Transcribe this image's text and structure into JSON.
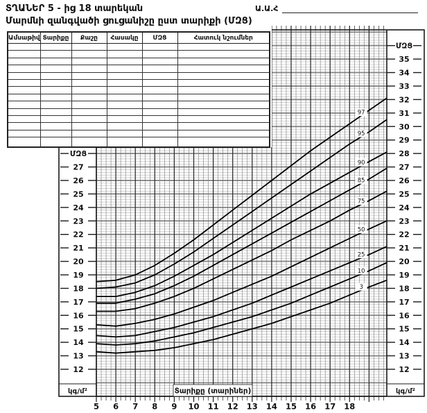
{
  "header": {
    "title_line1": "ՏՂԱՆԵՐ  5 - ից 18 տարեկան",
    "title_line2": "Մարմնի զանգվածի ցուցանիշը ըստ տարիքի (ՄԶՑ)",
    "name_label": "Ա.Ա.Հ"
  },
  "table": {
    "headers": [
      "Ամսաթիվ",
      "Տարիքը",
      "Քաշը",
      "Հասակը",
      "ՄԶՑ",
      "Հատուկ նշումներ"
    ],
    "empty_rows": 14
  },
  "chart_data": {
    "type": "line",
    "title": "Մարմնի զանգվածի ցուցանիշը ըստ տարիքի (ՄԶՑ)",
    "xlabel": "Տարիքը (տարիներ)",
    "ylabel": "ՄԶՑ",
    "y_unit": "կգ/մ²",
    "grid": true,
    "legend_position": "on-curve-right-end",
    "xlim": [
      5,
      19.9
    ],
    "ylim": [
      10,
      37.2
    ],
    "x_ticks": [
      5,
      6,
      7,
      8,
      9,
      10,
      11,
      12,
      13,
      14,
      15,
      16,
      17,
      18
    ],
    "y_ticks_left": [
      27,
      26,
      25,
      24,
      23,
      22,
      21,
      20,
      19,
      18,
      17,
      16,
      15,
      14,
      13,
      12
    ],
    "y_ticks_right": [
      35,
      34,
      33,
      32,
      31,
      30,
      29,
      28,
      27,
      26,
      25,
      24,
      23,
      22,
      21,
      20,
      19,
      18,
      17,
      16,
      15,
      14,
      13,
      12
    ],
    "x": [
      5,
      6,
      7,
      8,
      9,
      10,
      11,
      12,
      13,
      14,
      15,
      16,
      17,
      18,
      19,
      19.9
    ],
    "series": [
      {
        "name": "97",
        "values": [
          18.5,
          18.6,
          19.0,
          19.7,
          20.6,
          21.6,
          22.7,
          23.8,
          24.9,
          26.0,
          27.1,
          28.2,
          29.2,
          30.2,
          31.2,
          32.1
        ]
      },
      {
        "name": "95",
        "values": [
          18.0,
          18.1,
          18.4,
          19.0,
          19.8,
          20.7,
          21.7,
          22.7,
          23.7,
          24.7,
          25.7,
          26.7,
          27.7,
          28.7,
          29.6,
          30.5
        ]
      },
      {
        "name": "90",
        "values": [
          17.4,
          17.4,
          17.7,
          18.2,
          18.9,
          19.7,
          20.5,
          21.4,
          22.3,
          23.2,
          24.1,
          25.0,
          25.8,
          26.6,
          27.4,
          28.1
        ]
      },
      {
        "name": "85",
        "values": [
          16.9,
          16.9,
          17.2,
          17.6,
          18.2,
          18.9,
          19.7,
          20.5,
          21.3,
          22.1,
          22.9,
          23.7,
          24.5,
          25.3,
          26.1,
          26.9
        ]
      },
      {
        "name": "75",
        "values": [
          16.3,
          16.3,
          16.5,
          16.9,
          17.4,
          18.0,
          18.7,
          19.4,
          20.1,
          20.8,
          21.6,
          22.3,
          23.0,
          23.8,
          24.5,
          25.2
        ]
      },
      {
        "name": "50",
        "values": [
          15.3,
          15.2,
          15.4,
          15.7,
          16.1,
          16.6,
          17.1,
          17.7,
          18.3,
          18.9,
          19.6,
          20.3,
          21.0,
          21.7,
          22.4,
          23.0
        ]
      },
      {
        "name": "25",
        "values": [
          14.5,
          14.4,
          14.5,
          14.8,
          15.1,
          15.5,
          15.9,
          16.4,
          16.9,
          17.5,
          18.1,
          18.7,
          19.3,
          19.9,
          20.5,
          21.1
        ]
      },
      {
        "name": "10",
        "values": [
          13.9,
          13.8,
          13.9,
          14.1,
          14.4,
          14.7,
          15.1,
          15.5,
          15.9,
          16.4,
          16.9,
          17.5,
          18.1,
          18.7,
          19.3,
          19.9
        ]
      },
      {
        "name": "3",
        "values": [
          13.3,
          13.2,
          13.3,
          13.4,
          13.6,
          13.9,
          14.2,
          14.6,
          15.0,
          15.4,
          15.9,
          16.4,
          16.9,
          17.5,
          18.1,
          18.6
        ]
      }
    ]
  },
  "colors": {
    "ink": "#111111",
    "curve": "#000000",
    "grid_minor_h": "#b3b3b3",
    "grid_major_h": "#8d8d8d",
    "grid_minor_v": "#6e6e6e",
    "grid_major_v": "#2b2b2b",
    "border": "#1a1a1a",
    "bg": "#ffffff"
  }
}
